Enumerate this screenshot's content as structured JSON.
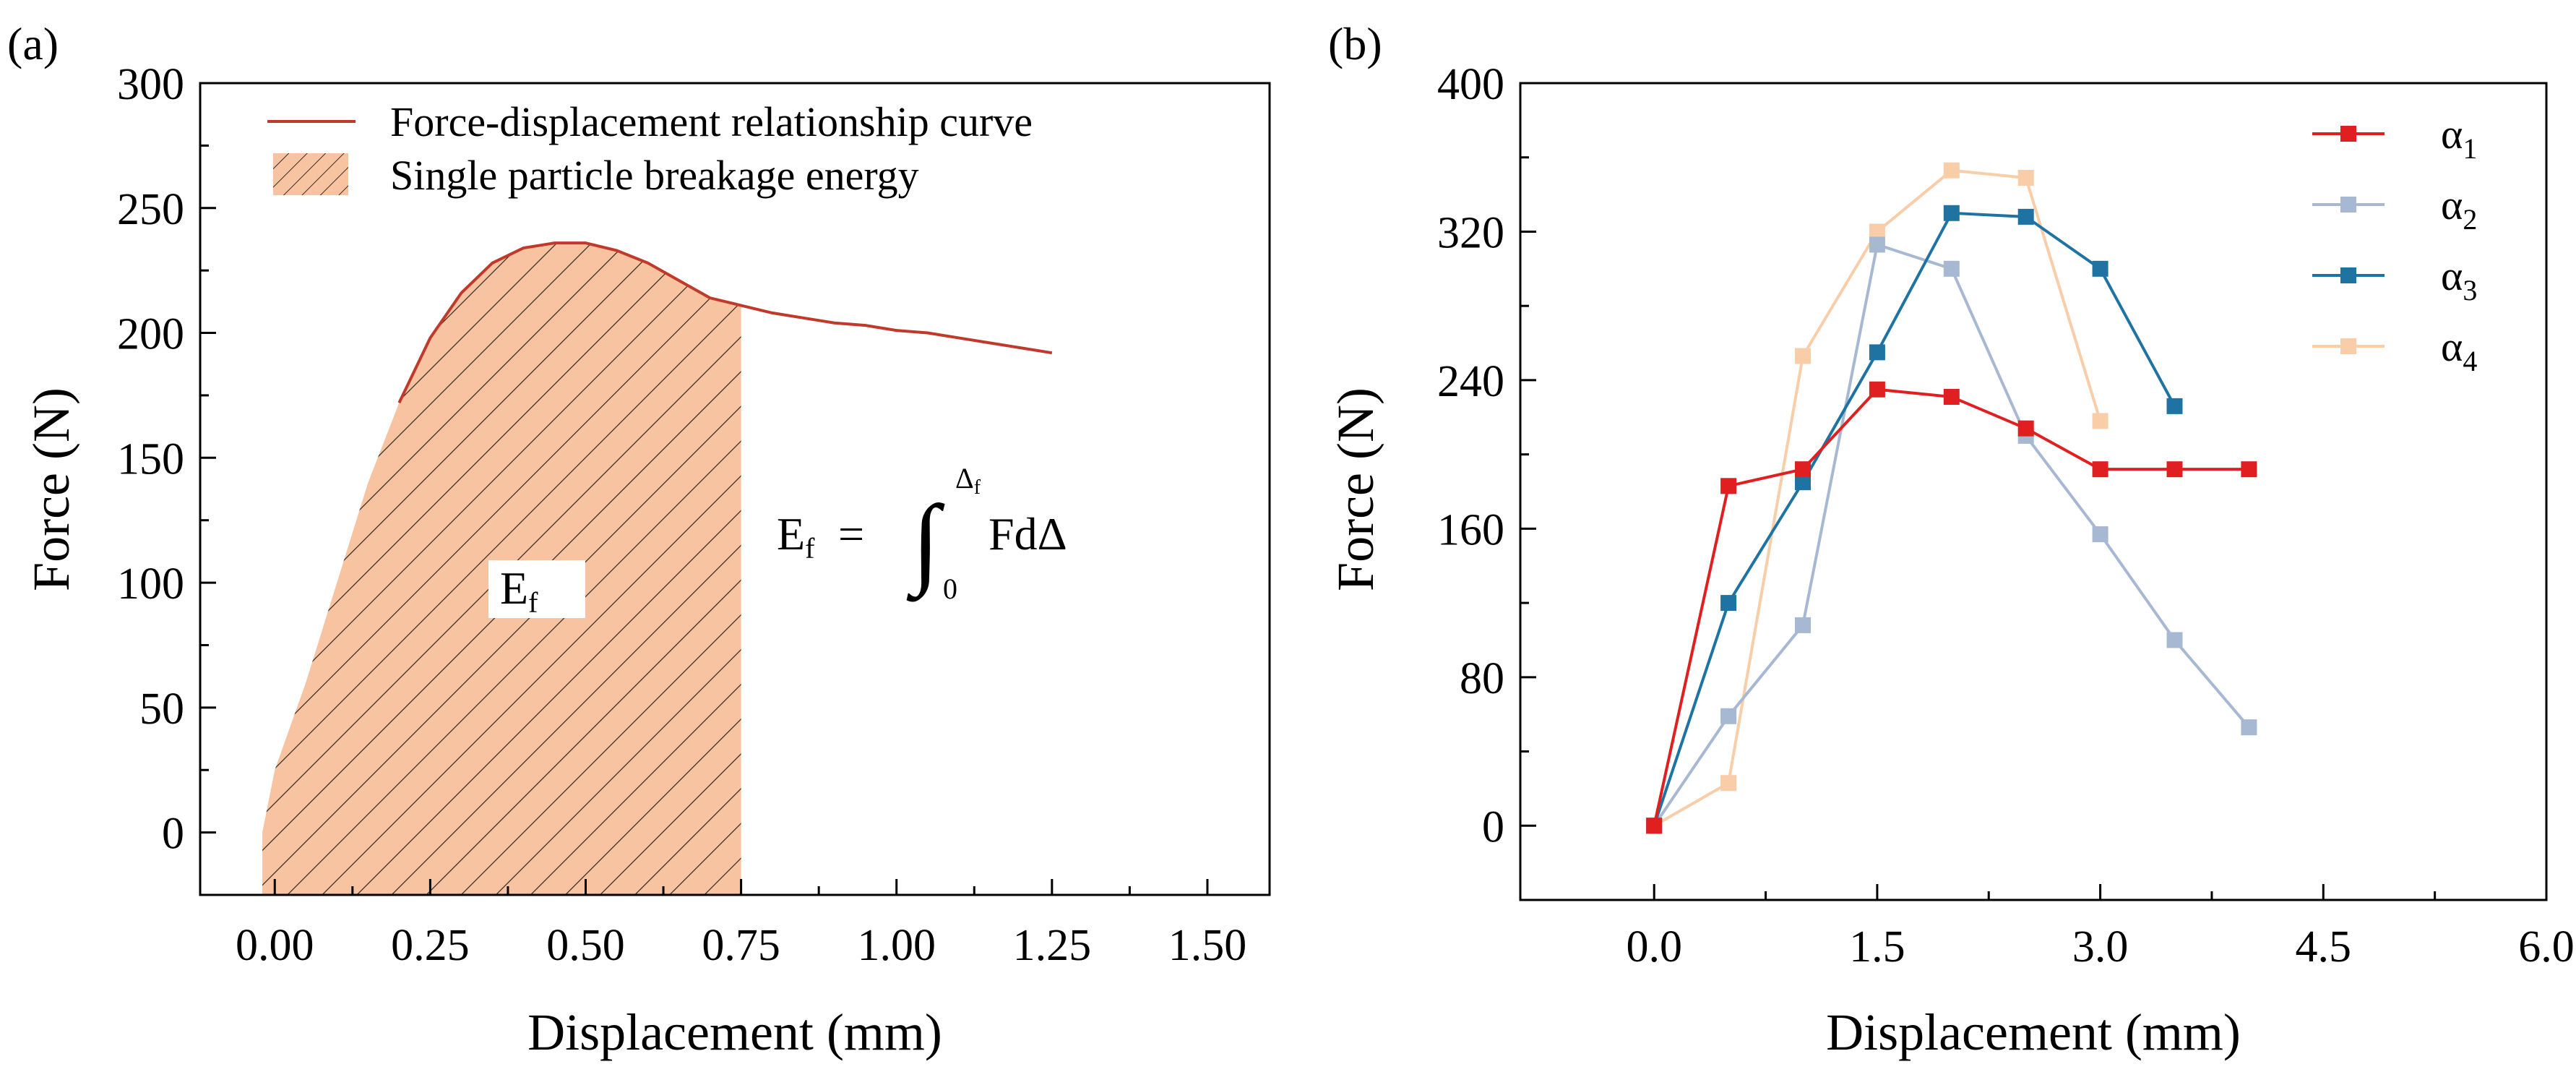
{
  "chart_data": [
    {
      "panel": "(a)",
      "type": "area",
      "xlabel": "Displacement (mm)",
      "ylabel": "Force (N)",
      "xlim": [
        -0.12,
        1.6
      ],
      "ylim": [
        -25,
        300
      ],
      "xticks": [
        "0.00",
        "0.25",
        "0.50",
        "0.75",
        "1.00",
        "1.25",
        "1.50"
      ],
      "yticks": [
        "0",
        "50",
        "100",
        "150",
        "200",
        "250",
        "300"
      ],
      "curve": {
        "name": "Force-displacement relationship curve",
        "color": "#c0392b",
        "x": [
          -0.02,
          0.0,
          0.05,
          0.1,
          0.15,
          0.2,
          0.25,
          0.3,
          0.35,
          0.4,
          0.45,
          0.5,
          0.55,
          0.6,
          0.65,
          0.7,
          0.75,
          0.8,
          0.85,
          0.9,
          0.95,
          1.0,
          1.05,
          1.1,
          1.15,
          1.2,
          1.25
        ],
        "y": [
          0,
          25,
          60,
          100,
          140,
          172,
          198,
          216,
          228,
          234,
          236,
          236,
          233,
          228,
          221,
          214,
          211,
          208,
          206,
          204,
          203,
          201,
          200,
          198,
          196,
          194,
          192
        ]
      },
      "area": {
        "name": "Single particle breakage energy",
        "label": "E",
        "label_sub": "f",
        "x_end": 0.75,
        "fill": "#f7c3a0",
        "hatch": "#3a2a20"
      },
      "formula": {
        "lhs": "E",
        "lhs_sub": "f",
        "eq": "=",
        "integral": "∫",
        "upper": "Δ",
        "upper_sub": "f",
        "lower": "0",
        "body": "FdΔ"
      }
    },
    {
      "panel": "(b)",
      "type": "line",
      "xlabel": "Displacement (mm)",
      "ylabel": "Force (N)",
      "xlim": [
        -0.9,
        6.0
      ],
      "ylim": [
        -40,
        400
      ],
      "xticks": [
        "0.0",
        "1.5",
        "3.0",
        "4.5",
        "6.0"
      ],
      "yticks": [
        "0",
        "80",
        "160",
        "240",
        "320",
        "400"
      ],
      "series": [
        {
          "name": "α",
          "sub": "1",
          "color": "#e02020",
          "x": [
            0,
            0.5,
            1.0,
            1.5,
            2.0,
            2.5,
            3.0,
            3.5,
            4.0
          ],
          "y": [
            0,
            183,
            192,
            235,
            231,
            214,
            192,
            192,
            192
          ]
        },
        {
          "name": "α",
          "sub": "2",
          "color": "#a6b8d2",
          "x": [
            0,
            0.5,
            1.0,
            1.5,
            2.0,
            2.5,
            3.0,
            3.5,
            4.0
          ],
          "y": [
            0,
            59,
            108,
            313,
            300,
            210,
            157,
            100,
            53
          ]
        },
        {
          "name": "α",
          "sub": "3",
          "color": "#1f73a3",
          "x": [
            0,
            0.5,
            1.0,
            1.5,
            2.0,
            2.5,
            3.0,
            3.5
          ],
          "y": [
            0,
            120,
            185,
            255,
            330,
            328,
            300,
            226
          ]
        },
        {
          "name": "α",
          "sub": "4",
          "color": "#f9cda8",
          "x": [
            0,
            0.5,
            1.0,
            1.5,
            2.0,
            2.5,
            3.0
          ],
          "y": [
            0,
            23,
            253,
            320,
            353,
            349,
            218
          ]
        }
      ]
    }
  ]
}
